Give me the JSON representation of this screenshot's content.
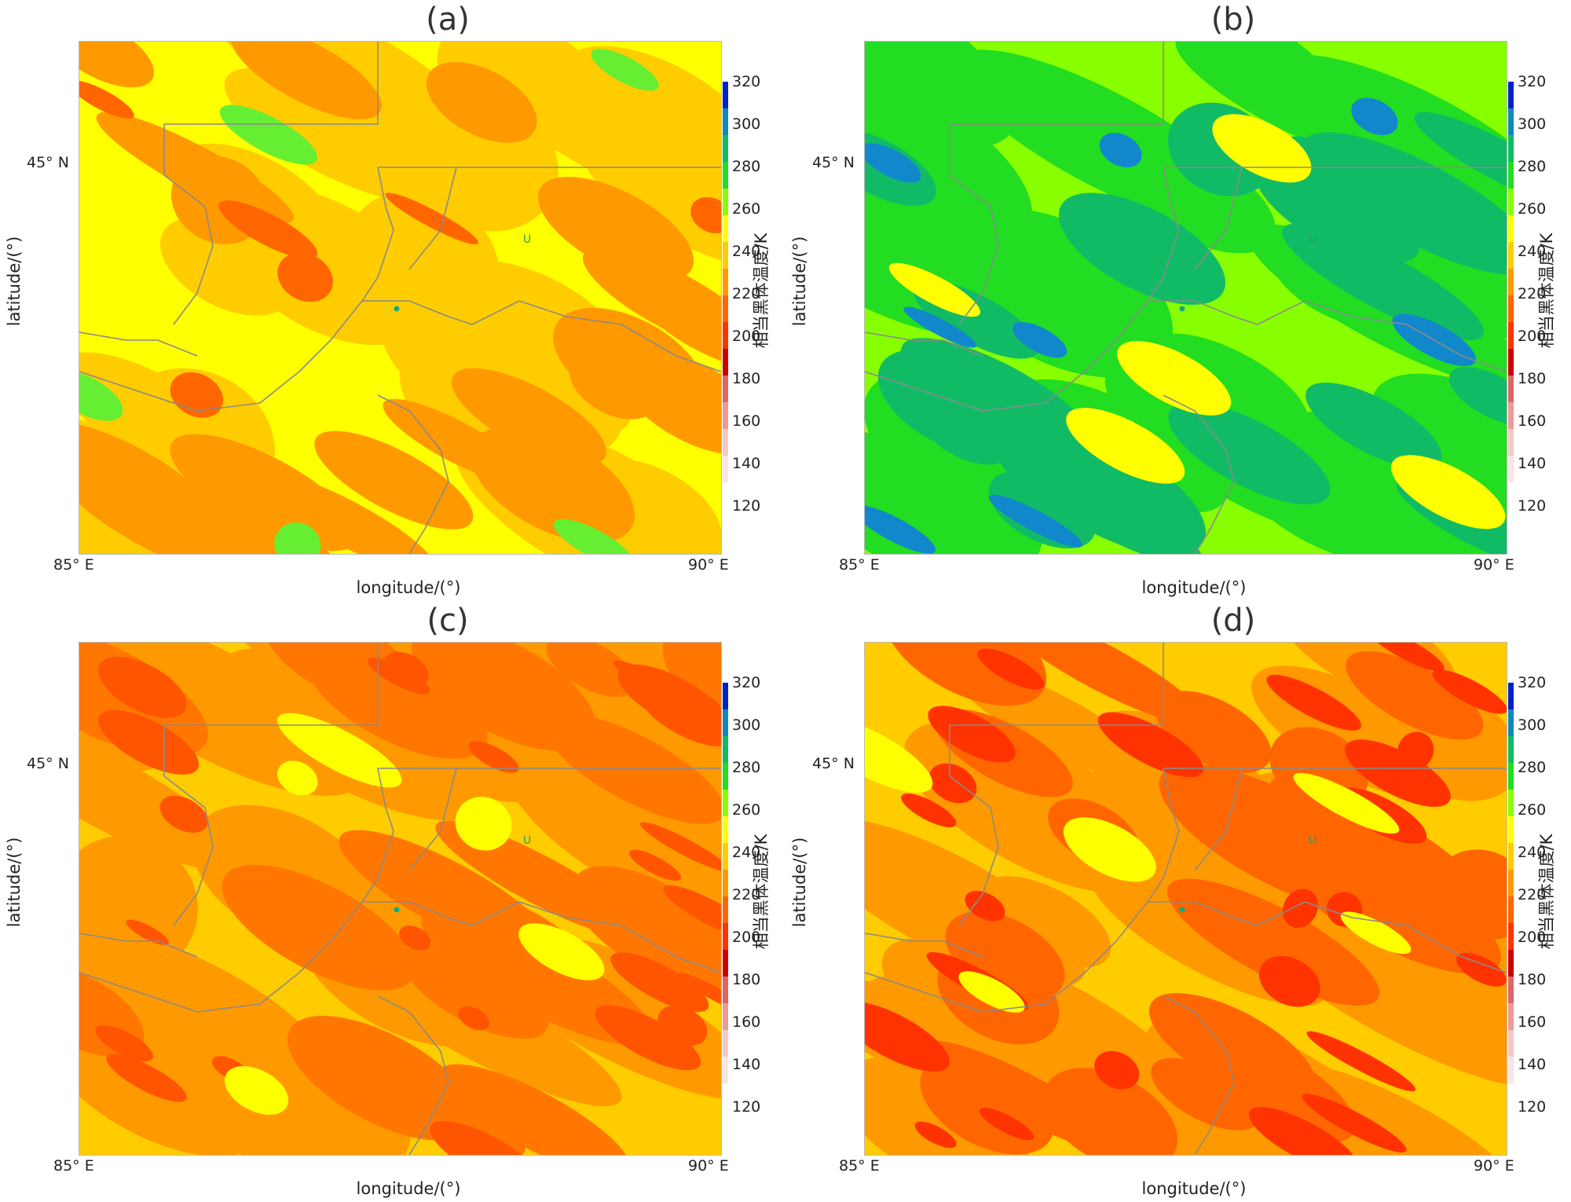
{
  "panels": [
    {
      "id": "a",
      "title": "(a)",
      "palette": {
        "base": "#ffff00",
        "mid": "#ffcc00",
        "high": "#ff9900",
        "hot": "#ff6600",
        "accent": "#66ee33"
      }
    },
    {
      "id": "b",
      "title": "(b)",
      "palette": {
        "base": "#88ff00",
        "mid": "#22dd22",
        "high": "#11bb66",
        "hot": "#1188cc",
        "accent": "#ffff00"
      }
    },
    {
      "id": "c",
      "title": "(c)",
      "palette": {
        "base": "#ffcc00",
        "mid": "#ff9900",
        "high": "#ff7700",
        "hot": "#ff5500",
        "accent": "#ffff00"
      }
    },
    {
      "id": "d",
      "title": "(d)",
      "palette": {
        "base": "#ffcc00",
        "mid": "#ff9900",
        "high": "#ff6600",
        "hot": "#ff3300",
        "accent": "#ffff00"
      }
    }
  ],
  "axes": {
    "xlabel": "longitude/(°)",
    "ylabel": "latitude/(°)",
    "lat_tick": "45° N",
    "lon_left": "85° E",
    "lon_right": "90° E"
  },
  "colorbar": {
    "title": "相当黑体温度/K",
    "ticks": [
      "320",
      "300",
      "280",
      "260",
      "240",
      "220",
      "200",
      "180",
      "160",
      "140",
      "120"
    ],
    "colors": [
      "#0022cc",
      "#1188bb",
      "#11bb66",
      "#22dd22",
      "#88ff00",
      "#ffff00",
      "#ffcc00",
      "#ff9900",
      "#ff6600",
      "#ff3300",
      "#cc0000",
      "#dd6666",
      "#ee9999",
      "#f5c8c8",
      "#fbe4e4",
      "#ffffff"
    ]
  },
  "map_marker": "U"
}
